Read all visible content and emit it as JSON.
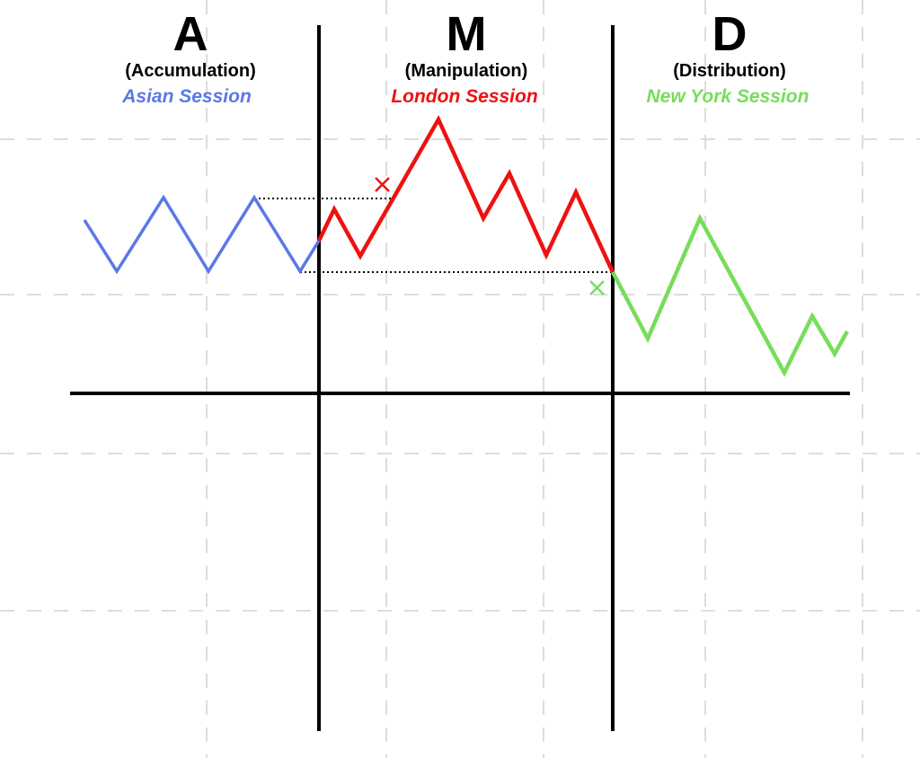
{
  "colors": {
    "accumulation": "#5b78e6",
    "manipulation": "#ee1111",
    "distribution": "#77dd5a",
    "axis": "#000000",
    "grid": "#dddddd"
  },
  "sections": [
    {
      "key": "accumulation",
      "letter": "A",
      "phase": "(Accumulation)",
      "session": "Asian Session"
    },
    {
      "key": "manipulation",
      "letter": "M",
      "phase": "(Manipulation)",
      "session": "London Session"
    },
    {
      "key": "distribution",
      "letter": "D",
      "phase": "(Distribution)",
      "session": "New York Session"
    }
  ],
  "markers": [
    {
      "name": "stop-hunt-high-marker",
      "symbol": "×",
      "color_key": "manipulation"
    },
    {
      "name": "liquidity-sweep-low-marker",
      "symbol": "×",
      "color_key": "distribution"
    }
  ]
}
